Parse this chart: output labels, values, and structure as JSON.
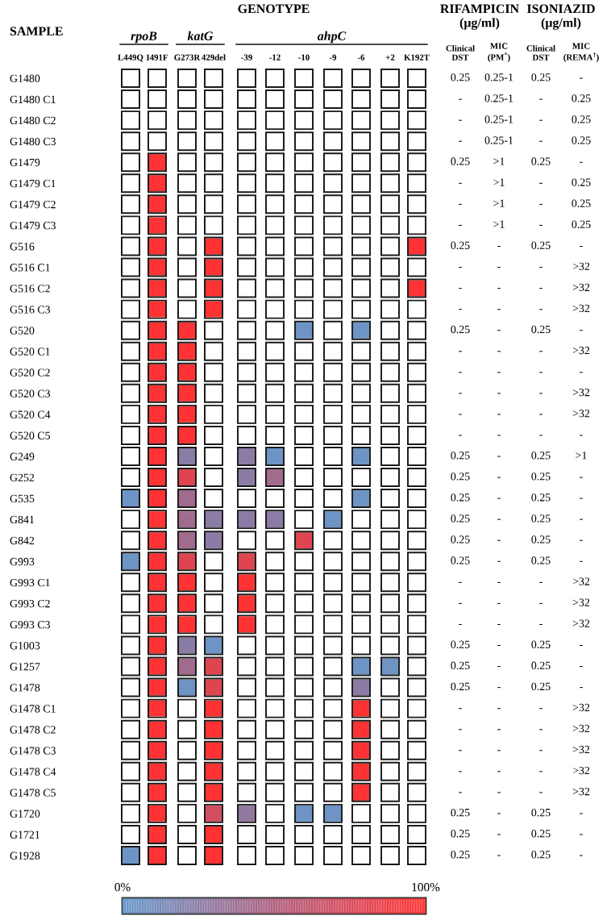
{
  "chart_data": {
    "type": "heatmap",
    "ylabel": "SAMPLE",
    "annotations": [
      "GENOTYPE",
      "RIFAMPICIN\n(μg/ml)",
      "ISONIAZID\n(μg/ml)",
      "rpoB",
      "katG",
      "ahpC"
    ],
    "categories": [
      "L449Q",
      "I491F",
      "G273R",
      "429del",
      "-39",
      "-12",
      "-10",
      "-9",
      "-6",
      "+2",
      "K192T",
      "Clinical\nDST",
      "MIC\n(PM$^{*}$)",
      "Clinical\nDST",
      "MIC\n(REMA$^{†}$)"
    ],
    "y_categories": [
      "G1480",
      "G1480 C1",
      "G1480 C2",
      "G1480 C3",
      "G1479",
      "G1479 C1",
      "G1479 C2",
      "G1479 C3",
      "G516",
      "G516 C1",
      "G516 C2",
      "G516 C3",
      "G520",
      "G520 C1",
      "G520 C2",
      "G520 C3",
      "G520 C4",
      "G520 C5",
      "G249",
      "G252",
      "G535",
      "G841",
      "G842",
      "G993",
      "G993 C1",
      "G993 C2",
      "G993 C3",
      "G1003",
      "G1257",
      "G1478",
      "G1478 C1",
      "G1478 C2",
      "G1478 C3",
      "G1478 C4",
      "G1478 C5",
      "G1720",
      "G1721",
      "G1928"
    ],
    "cells": [
      [
        null,
        null,
        null,
        null,
        null,
        null,
        null,
        null,
        null,
        null,
        null,
        null,
        null,
        null,
        null
      ],
      [
        null,
        null,
        null,
        null,
        null,
        null,
        null,
        null,
        null,
        null,
        null,
        null,
        null,
        null,
        null
      ],
      [
        null,
        null,
        null,
        null,
        null,
        null,
        null,
        null,
        null,
        null,
        null,
        null,
        null,
        null,
        null
      ],
      [
        null,
        null,
        null,
        null,
        null,
        null,
        null,
        null,
        null,
        null,
        null,
        null,
        null,
        null,
        null
      ],
      [
        null,
        100,
        null,
        null,
        null,
        null,
        null,
        null,
        null,
        null,
        null,
        null,
        null,
        null,
        null
      ],
      [
        null,
        100,
        null,
        null,
        null,
        null,
        null,
        null,
        null,
        null,
        null,
        null,
        null,
        null,
        null
      ],
      [
        null,
        100,
        null,
        null,
        null,
        null,
        null,
        null,
        null,
        null,
        null,
        null,
        null,
        null,
        null
      ],
      [
        null,
        100,
        null,
        null,
        null,
        null,
        null,
        null,
        null,
        null,
        null,
        null,
        null,
        null,
        null
      ],
      [
        null,
        100,
        null,
        100,
        null,
        null,
        null,
        null,
        null,
        null,
        100,
        null,
        null,
        null,
        null
      ],
      [
        null,
        100,
        null,
        100,
        null,
        null,
        null,
        null,
        null,
        null,
        null,
        null,
        null,
        null,
        null
      ],
      [
        null,
        100,
        null,
        100,
        null,
        null,
        null,
        null,
        null,
        null,
        100,
        null,
        null,
        null,
        null
      ],
      [
        null,
        100,
        null,
        100,
        null,
        null,
        null,
        null,
        null,
        null,
        null,
        null,
        null,
        null,
        null
      ],
      [
        null,
        100,
        100,
        null,
        null,
        null,
        5,
        null,
        5,
        null,
        null,
        null,
        null,
        null,
        null
      ],
      [
        null,
        100,
        100,
        null,
        null,
        null,
        null,
        null,
        null,
        null,
        null,
        null,
        null,
        null,
        null
      ],
      [
        null,
        100,
        100,
        null,
        null,
        null,
        null,
        null,
        null,
        null,
        null,
        null,
        null,
        null,
        null
      ],
      [
        null,
        100,
        100,
        null,
        null,
        null,
        null,
        null,
        null,
        null,
        null,
        null,
        null,
        null,
        null
      ],
      [
        null,
        100,
        100,
        null,
        null,
        null,
        null,
        null,
        null,
        null,
        null,
        null,
        null,
        null,
        null
      ],
      [
        null,
        100,
        100,
        null,
        null,
        null,
        null,
        null,
        null,
        null,
        null,
        null,
        null,
        null,
        null
      ],
      [
        null,
        100,
        25,
        null,
        25,
        5,
        null,
        null,
        5,
        null,
        null,
        null,
        null,
        null,
        null
      ],
      [
        null,
        100,
        80,
        null,
        25,
        40,
        null,
        null,
        null,
        null,
        null,
        null,
        null,
        null,
        null
      ],
      [
        5,
        100,
        40,
        null,
        null,
        null,
        null,
        null,
        5,
        null,
        null,
        null,
        null,
        null,
        null
      ],
      [
        null,
        100,
        40,
        25,
        25,
        25,
        null,
        5,
        null,
        null,
        null,
        null,
        null,
        null,
        null
      ],
      [
        null,
        100,
        40,
        25,
        null,
        null,
        80,
        null,
        null,
        null,
        null,
        null,
        null,
        null,
        null
      ],
      [
        5,
        100,
        80,
        null,
        80,
        null,
        null,
        null,
        null,
        null,
        null,
        null,
        null,
        null,
        null
      ],
      [
        null,
        100,
        100,
        null,
        100,
        null,
        null,
        null,
        null,
        null,
        null,
        null,
        null,
        null,
        null
      ],
      [
        null,
        100,
        100,
        null,
        100,
        null,
        null,
        null,
        null,
        null,
        null,
        null,
        null,
        null,
        null
      ],
      [
        null,
        100,
        100,
        null,
        100,
        null,
        null,
        null,
        null,
        null,
        null,
        null,
        null,
        null,
        null
      ],
      [
        null,
        100,
        25,
        5,
        null,
        null,
        null,
        null,
        null,
        null,
        null,
        null,
        null,
        null,
        null
      ],
      [
        null,
        100,
        40,
        80,
        null,
        null,
        null,
        null,
        5,
        5,
        null,
        null,
        null,
        null,
        null
      ],
      [
        null,
        100,
        5,
        80,
        null,
        null,
        null,
        null,
        25,
        null,
        null,
        null,
        null,
        null,
        null
      ],
      [
        null,
        100,
        null,
        100,
        null,
        null,
        null,
        null,
        100,
        null,
        null,
        null,
        null,
        null,
        null
      ],
      [
        null,
        100,
        null,
        100,
        null,
        null,
        null,
        null,
        100,
        null,
        null,
        null,
        null,
        null,
        null
      ],
      [
        null,
        100,
        null,
        100,
        null,
        null,
        null,
        null,
        100,
        null,
        null,
        null,
        null,
        null,
        null
      ],
      [
        null,
        100,
        null,
        100,
        null,
        null,
        null,
        null,
        100,
        null,
        null,
        null,
        null,
        null,
        null
      ],
      [
        null,
        100,
        null,
        100,
        null,
        null,
        null,
        null,
        100,
        null,
        null,
        null,
        null,
        null,
        null
      ],
      [
        null,
        100,
        null,
        70,
        30,
        null,
        5,
        5,
        null,
        null,
        null,
        null,
        null,
        null,
        null
      ],
      [
        null,
        100,
        null,
        100,
        null,
        null,
        null,
        null,
        null,
        null,
        null,
        null,
        null,
        null,
        null
      ],
      [
        5,
        100,
        null,
        100,
        null,
        null,
        null,
        null,
        null,
        null,
        null,
        null,
        null,
        null,
        null
      ]
    ],
    "cell_labels": [
      [
        null,
        null,
        null,
        null,
        null,
        null,
        null,
        null,
        null,
        null,
        null,
        "0.25",
        "0.25-1",
        "0.25",
        "-"
      ],
      [
        null,
        null,
        null,
        null,
        null,
        null,
        null,
        null,
        null,
        null,
        null,
        "-",
        "0.25-1",
        "-",
        "0.25"
      ],
      [
        null,
        null,
        null,
        null,
        null,
        null,
        null,
        null,
        null,
        null,
        null,
        "-",
        "0.25-1",
        "-",
        "0.25"
      ],
      [
        null,
        null,
        null,
        null,
        null,
        null,
        null,
        null,
        null,
        null,
        null,
        "-",
        "0.25-1",
        "-",
        "0.25"
      ],
      [
        null,
        null,
        null,
        null,
        null,
        null,
        null,
        null,
        null,
        null,
        null,
        "0.25",
        ">1",
        "0.25",
        "-"
      ],
      [
        null,
        null,
        null,
        null,
        null,
        null,
        null,
        null,
        null,
        null,
        null,
        "-",
        ">1",
        "-",
        "0.25"
      ],
      [
        null,
        null,
        null,
        null,
        null,
        null,
        null,
        null,
        null,
        null,
        null,
        "-",
        ">1",
        "-",
        "0.25"
      ],
      [
        null,
        null,
        null,
        null,
        null,
        null,
        null,
        null,
        null,
        null,
        null,
        "-",
        ">1",
        "-",
        "0.25"
      ],
      [
        null,
        null,
        null,
        null,
        null,
        null,
        null,
        null,
        null,
        null,
        null,
        "0.25",
        "-",
        "0.25",
        "-"
      ],
      [
        null,
        null,
        null,
        null,
        null,
        null,
        null,
        null,
        null,
        null,
        null,
        "-",
        "-",
        "-",
        ">32"
      ],
      [
        null,
        null,
        null,
        null,
        null,
        null,
        null,
        null,
        null,
        null,
        null,
        "-",
        "-",
        "-",
        ">32"
      ],
      [
        null,
        null,
        null,
        null,
        null,
        null,
        null,
        null,
        null,
        null,
        null,
        "-",
        "-",
        "-",
        ">32"
      ],
      [
        null,
        null,
        null,
        null,
        null,
        null,
        null,
        null,
        null,
        null,
        null,
        "0.25",
        "-",
        "0.25",
        "-"
      ],
      [
        null,
        null,
        null,
        null,
        null,
        null,
        null,
        null,
        null,
        null,
        null,
        "-",
        "-",
        "-",
        ">32"
      ],
      [
        null,
        null,
        null,
        null,
        null,
        null,
        null,
        null,
        null,
        null,
        null,
        "-",
        "-",
        "-",
        "-"
      ],
      [
        null,
        null,
        null,
        null,
        null,
        null,
        null,
        null,
        null,
        null,
        null,
        "-",
        "-",
        "-",
        ">32"
      ],
      [
        null,
        null,
        null,
        null,
        null,
        null,
        null,
        null,
        null,
        null,
        null,
        "-",
        "-",
        "-",
        ">32"
      ],
      [
        null,
        null,
        null,
        null,
        null,
        null,
        null,
        null,
        null,
        null,
        null,
        "-",
        "-",
        "-",
        "-"
      ],
      [
        null,
        null,
        null,
        null,
        null,
        null,
        null,
        null,
        null,
        null,
        null,
        "0.25",
        "-",
        "0.25",
        ">1"
      ],
      [
        null,
        null,
        null,
        null,
        null,
        null,
        null,
        null,
        null,
        null,
        null,
        "0.25",
        "-",
        "0.25",
        "-"
      ],
      [
        null,
        null,
        null,
        null,
        null,
        null,
        null,
        null,
        null,
        null,
        null,
        "0.25",
        "-",
        "0.25",
        "-"
      ],
      [
        null,
        null,
        null,
        null,
        null,
        null,
        null,
        null,
        null,
        null,
        null,
        "0.25",
        "-",
        "0.25",
        "-"
      ],
      [
        null,
        null,
        null,
        null,
        null,
        null,
        null,
        null,
        null,
        null,
        null,
        "0.25",
        "-",
        "0.25",
        "-"
      ],
      [
        null,
        null,
        null,
        null,
        null,
        null,
        null,
        null,
        null,
        null,
        null,
        "0.25",
        "-",
        "0.25",
        "-"
      ],
      [
        null,
        null,
        null,
        null,
        null,
        null,
        null,
        null,
        null,
        null,
        null,
        "-",
        "-",
        "-",
        ">32"
      ],
      [
        null,
        null,
        null,
        null,
        null,
        null,
        null,
        null,
        null,
        null,
        null,
        "-",
        "-",
        "-",
        ">32"
      ],
      [
        null,
        null,
        null,
        null,
        null,
        null,
        null,
        null,
        null,
        null,
        null,
        "-",
        "-",
        "-",
        ">32"
      ],
      [
        null,
        null,
        null,
        null,
        null,
        null,
        null,
        null,
        null,
        null,
        null,
        "0.25",
        "-",
        "0.25",
        "-"
      ],
      [
        null,
        null,
        null,
        null,
        null,
        null,
        null,
        null,
        null,
        null,
        null,
        "0.25",
        "-",
        "0.25",
        "-"
      ],
      [
        null,
        null,
        null,
        null,
        null,
        null,
        null,
        null,
        null,
        null,
        null,
        "0.25",
        "-",
        "0.25",
        "-"
      ],
      [
        null,
        null,
        null,
        null,
        null,
        null,
        null,
        null,
        null,
        null,
        null,
        "-",
        "-",
        "-",
        ">32"
      ],
      [
        null,
        null,
        null,
        null,
        null,
        null,
        null,
        null,
        null,
        null,
        null,
        "-",
        "-",
        "-",
        ">32"
      ],
      [
        null,
        null,
        null,
        null,
        null,
        null,
        null,
        null,
        null,
        null,
        null,
        "-",
        "-",
        "-",
        ">32"
      ],
      [
        null,
        null,
        null,
        null,
        null,
        null,
        null,
        null,
        null,
        null,
        null,
        "-",
        "-",
        "-",
        ">32"
      ],
      [
        null,
        null,
        null,
        null,
        null,
        null,
        null,
        null,
        null,
        null,
        null,
        "-",
        "-",
        "-",
        ">32"
      ],
      [
        null,
        null,
        null,
        null,
        null,
        null,
        null,
        null,
        null,
        null,
        null,
        "0.25",
        "-",
        "0.25",
        "-"
      ],
      [
        null,
        null,
        null,
        null,
        null,
        null,
        null,
        null,
        null,
        null,
        null,
        "0.25",
        "-",
        "0.25",
        "-"
      ],
      [
        null,
        null,
        null,
        null,
        null,
        null,
        null,
        null,
        null,
        null,
        null,
        "0.25",
        "-",
        "0.25",
        "-"
      ]
    ],
    "clim": [
      0,
      100
    ],
    "colors": [
      "#6699cc",
      "#b0607f",
      "#ff3333"
    ],
    "cticks": [
      {
        "value": 0,
        "label": "0%"
      },
      {
        "value": 100,
        "label": "100%"
      }
    ]
  }
}
